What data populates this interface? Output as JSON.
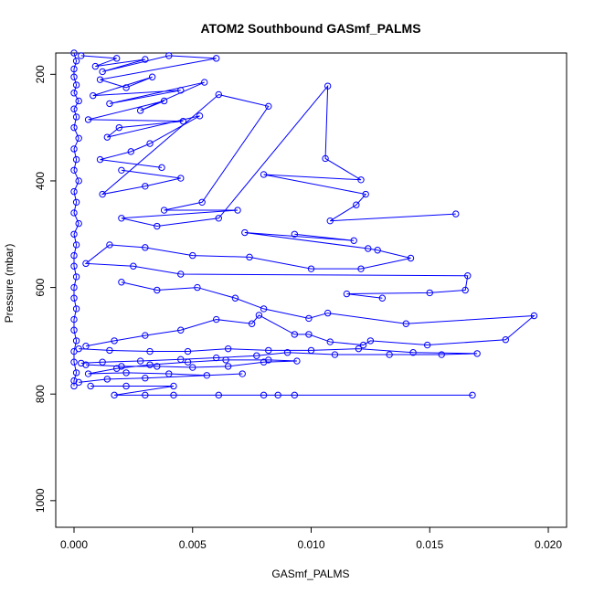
{
  "chart_data": {
    "type": "scatter",
    "title": "ATOM2 Southbound GASmf_PALMS",
    "xlabel": "GASmf_PALMS",
    "ylabel": "Pressure (mbar)",
    "xlim": [
      0,
      0.02
    ],
    "ylim": [
      1050,
      160
    ],
    "y_reversed": true,
    "x_ticks": [
      0.0,
      0.005,
      0.01,
      0.015,
      0.02
    ],
    "x_tick_labels": [
      "0.000",
      "0.005",
      "0.010",
      "0.015",
      "0.020"
    ],
    "y_ticks": [
      200,
      400,
      600,
      800,
      1000
    ],
    "y_tick_labels": [
      "200",
      "400",
      "600",
      "800",
      "1000"
    ],
    "grid": false,
    "colors": {
      "series": "#0000ff",
      "axes": "#000000",
      "background": "#ffffff"
    },
    "series": [
      {
        "points": [
          [
            0.0,
            160
          ],
          [
            0.0001,
            175
          ],
          [
            0.0,
            190
          ],
          [
            0.0,
            205
          ],
          [
            0.0001,
            220
          ],
          [
            0.0,
            235
          ],
          [
            0.0002,
            250
          ],
          [
            0.0,
            265
          ],
          [
            0.0001,
            280
          ],
          [
            0.0,
            300
          ],
          [
            0.0002,
            320
          ],
          [
            0.0,
            340
          ],
          [
            0.0001,
            360
          ],
          [
            0.0,
            380
          ],
          [
            0.0002,
            400
          ],
          [
            0.0,
            420
          ],
          [
            0.0001,
            440
          ],
          [
            0.0,
            460
          ],
          [
            0.0002,
            480
          ],
          [
            0.0,
            500
          ],
          [
            0.0001,
            520
          ],
          [
            0.0,
            540
          ],
          [
            0.0,
            560
          ],
          [
            0.0001,
            580
          ],
          [
            0.0,
            600
          ],
          [
            0.0,
            620
          ],
          [
            0.0001,
            640
          ],
          [
            0.0,
            660
          ],
          [
            0.0,
            680
          ],
          [
            0.0001,
            700
          ],
          [
            0.0,
            720
          ],
          [
            0.0,
            740
          ],
          [
            0.0001,
            760
          ],
          [
            0.0,
            775
          ],
          [
            0.0,
            785
          ]
        ]
      },
      {
        "points": [
          [
            0.0003,
            165
          ],
          [
            0.0018,
            170
          ],
          [
            0.0009,
            185
          ],
          [
            0.003,
            172
          ],
          [
            0.0012,
            195
          ],
          [
            0.004,
            165
          ],
          [
            0.006,
            170
          ],
          [
            0.0011,
            210
          ],
          [
            0.0022,
            225
          ],
          [
            0.0033,
            205
          ],
          [
            0.0008,
            240
          ],
          [
            0.0045,
            230
          ],
          [
            0.0015,
            255
          ],
          [
            0.0055,
            215
          ],
          [
            0.0028,
            268
          ],
          [
            0.0038,
            250
          ],
          [
            0.0006,
            285
          ],
          [
            0.0046,
            288
          ],
          [
            0.0019,
            300
          ],
          [
            0.0014,
            318
          ],
          [
            0.0053,
            278
          ],
          [
            0.0032,
            330
          ],
          [
            0.0024,
            345
          ],
          [
            0.0011,
            360
          ],
          [
            0.0037,
            375
          ]
        ]
      },
      {
        "points": [
          [
            0.002,
            380
          ],
          [
            0.0045,
            395
          ],
          [
            0.003,
            410
          ],
          [
            0.0012,
            425
          ],
          [
            0.0061,
            238
          ],
          [
            0.0082,
            260
          ],
          [
            0.0054,
            440
          ],
          [
            0.0038,
            455
          ],
          [
            0.0069,
            455
          ],
          [
            0.002,
            470
          ],
          [
            0.0035,
            485
          ],
          [
            0.0061,
            470
          ],
          [
            0.0107,
            222
          ],
          [
            0.0106,
            358
          ],
          [
            0.0121,
            398
          ],
          [
            0.008,
            388
          ],
          [
            0.0123,
            425
          ],
          [
            0.0119,
            445
          ],
          [
            0.0108,
            475
          ],
          [
            0.0161,
            462
          ]
        ]
      },
      {
        "points": [
          [
            0.0093,
            500
          ],
          [
            0.0118,
            512
          ],
          [
            0.0072,
            497
          ],
          [
            0.0124,
            527
          ],
          [
            0.0128,
            530
          ],
          [
            0.0142,
            545
          ],
          [
            0.0121,
            565
          ],
          [
            0.01,
            565
          ],
          [
            0.0074,
            543
          ],
          [
            0.005,
            540
          ],
          [
            0.003,
            525
          ],
          [
            0.0015,
            520
          ],
          [
            0.0005,
            555
          ],
          [
            0.0025,
            560
          ],
          [
            0.0045,
            575
          ],
          [
            0.0166,
            578
          ],
          [
            0.0165,
            605
          ],
          [
            0.015,
            610
          ],
          [
            0.0115,
            612
          ],
          [
            0.013,
            620
          ]
        ]
      },
      {
        "points": [
          [
            0.002,
            590
          ],
          [
            0.0035,
            605
          ],
          [
            0.0052,
            600
          ],
          [
            0.0068,
            620
          ],
          [
            0.008,
            640
          ],
          [
            0.0099,
            658
          ],
          [
            0.0107,
            648
          ],
          [
            0.014,
            668
          ],
          [
            0.0194,
            653
          ],
          [
            0.0182,
            698
          ],
          [
            0.0149,
            708
          ],
          [
            0.0125,
            700
          ],
          [
            0.0122,
            708
          ],
          [
            0.0108,
            702
          ],
          [
            0.0099,
            688
          ],
          [
            0.0093,
            688
          ],
          [
            0.0078,
            652
          ],
          [
            0.0075,
            668
          ],
          [
            0.006,
            660
          ],
          [
            0.0045,
            680
          ],
          [
            0.003,
            690
          ],
          [
            0.0017,
            700
          ],
          [
            0.0005,
            710
          ]
        ]
      },
      {
        "points": [
          [
            0.0002,
            715
          ],
          [
            0.0015,
            718
          ],
          [
            0.0032,
            720
          ],
          [
            0.0048,
            720
          ],
          [
            0.0065,
            715
          ],
          [
            0.0082,
            718
          ],
          [
            0.01,
            718
          ],
          [
            0.012,
            715
          ],
          [
            0.0143,
            722
          ],
          [
            0.017,
            724
          ],
          [
            0.0155,
            726
          ],
          [
            0.0133,
            726
          ],
          [
            0.011,
            726
          ],
          [
            0.009,
            722
          ],
          [
            0.0077,
            728
          ],
          [
            0.006,
            732
          ],
          [
            0.0045,
            735
          ],
          [
            0.0028,
            738
          ],
          [
            0.0012,
            740
          ],
          [
            0.0003,
            742
          ]
        ]
      },
      {
        "points": [
          [
            0.0005,
            745
          ],
          [
            0.002,
            748
          ],
          [
            0.0035,
            748
          ],
          [
            0.005,
            750
          ],
          [
            0.0065,
            748
          ],
          [
            0.008,
            740
          ],
          [
            0.0094,
            738
          ],
          [
            0.0082,
            736
          ],
          [
            0.0064,
            736
          ],
          [
            0.0048,
            740
          ],
          [
            0.0032,
            745
          ],
          [
            0.0018,
            752
          ],
          [
            0.0006,
            762
          ],
          [
            0.0022,
            760
          ],
          [
            0.004,
            762
          ],
          [
            0.0056,
            765
          ],
          [
            0.0071,
            762
          ],
          [
            0.003,
            770
          ],
          [
            0.0014,
            772
          ],
          [
            0.0002,
            778
          ]
        ]
      },
      {
        "points": [
          [
            0.0007,
            785
          ],
          [
            0.0022,
            785
          ],
          [
            0.0042,
            785
          ],
          [
            0.0017,
            802
          ],
          [
            0.003,
            802
          ],
          [
            0.0042,
            802
          ],
          [
            0.0061,
            802
          ],
          [
            0.008,
            802
          ],
          [
            0.0086,
            802
          ],
          [
            0.0093,
            802
          ],
          [
            0.0168,
            802
          ]
        ]
      }
    ]
  }
}
